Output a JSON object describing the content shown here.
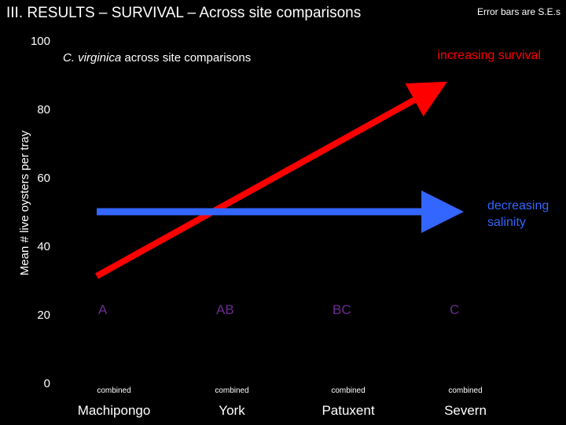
{
  "slide": {
    "title": "III.  RESULTS –  SURVIVAL – Across site comparisons",
    "error_note": "Error bars are S.E.s"
  },
  "colors": {
    "background": "#000000",
    "text": "#ffffff",
    "increasing": "#ff0000",
    "decreasing": "#3366ff",
    "letters": "#6a2c91"
  },
  "chart_data": {
    "type": "bar",
    "title": "",
    "subtitle": {
      "italic": "C. virginica",
      "rest": " across site comparisons"
    },
    "ylabel": "Mean # live oysters per tray",
    "xlabel": "",
    "ylim": [
      0,
      100
    ],
    "yticks": [
      0,
      20,
      40,
      60,
      80,
      100
    ],
    "grid": false,
    "categories": [
      "Machipongo",
      "York",
      "Patuxent",
      "Severn"
    ],
    "bar_labels": [
      "combined",
      "combined",
      "combined",
      "combined"
    ],
    "group_letters": [
      "A",
      "AB",
      "BC",
      "C"
    ],
    "series": [],
    "annotations": {
      "increasing": {
        "label": "increasing survival",
        "y_start": 35,
        "y_end": 90
      },
      "decreasing": {
        "label_line1": "decreasing",
        "label_line2": "salinity",
        "y": 50
      }
    }
  }
}
